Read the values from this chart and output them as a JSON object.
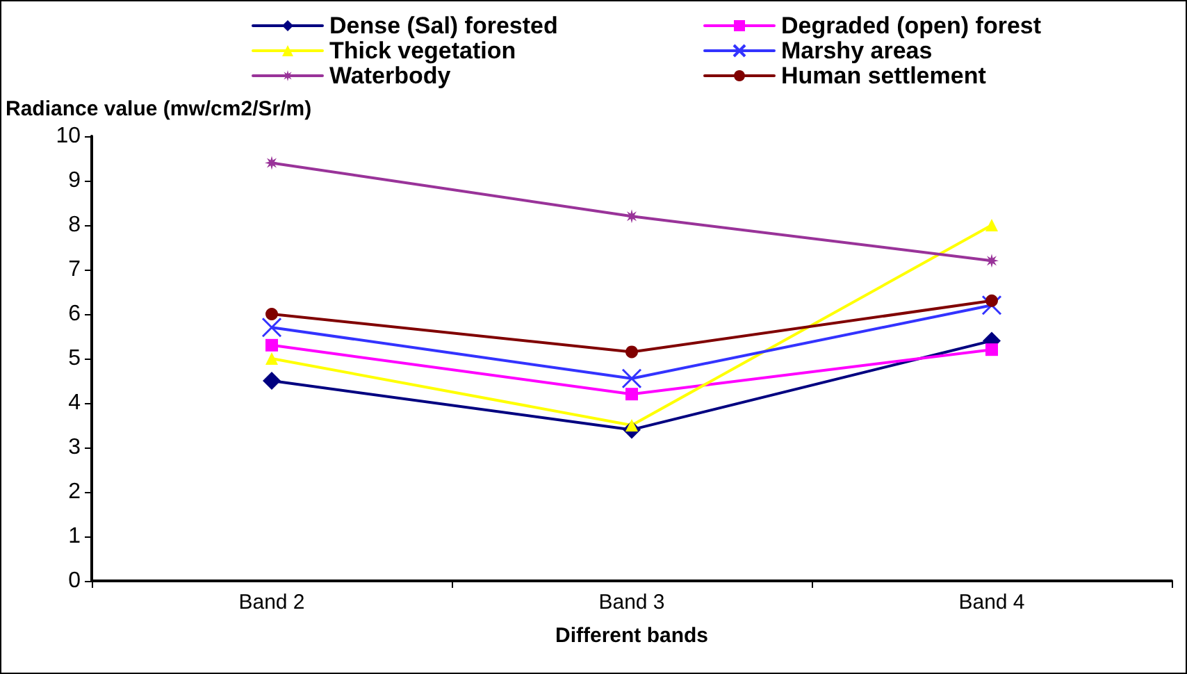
{
  "chart_data": {
    "type": "line",
    "xlabel": "Different bands",
    "ylabel": "Radiance value (mw/cm2/Sr/m)",
    "categories": [
      "Band 2",
      "Band 3",
      "Band 4"
    ],
    "ylim": [
      0,
      10
    ],
    "yticks": [
      0,
      1,
      2,
      3,
      4,
      5,
      6,
      7,
      8,
      9,
      10
    ],
    "grid": false,
    "legend": "top",
    "line_style": "solid",
    "series": [
      {
        "name": "Dense (Sal) forested",
        "color": "#000080",
        "marker": "diamond",
        "values": [
          4.5,
          3.4,
          5.4
        ]
      },
      {
        "name": "Degraded (open) forest",
        "color": "#ff00ff",
        "marker": "square",
        "values": [
          5.3,
          4.2,
          5.2
        ]
      },
      {
        "name": "Thick vegetation",
        "color": "#ffff00",
        "marker": "triangle",
        "values": [
          5.0,
          3.5,
          8.0
        ]
      },
      {
        "name": "Marshy areas",
        "color": "#3333ff",
        "marker": "cross",
        "values": [
          5.7,
          4.55,
          6.2
        ]
      },
      {
        "name": "Waterbody",
        "color": "#993399",
        "marker": "star",
        "values": [
          9.4,
          8.2,
          7.2
        ]
      },
      {
        "name": "Human settlement",
        "color": "#800000",
        "marker": "circle",
        "values": [
          6.0,
          5.15,
          6.3
        ]
      }
    ]
  }
}
